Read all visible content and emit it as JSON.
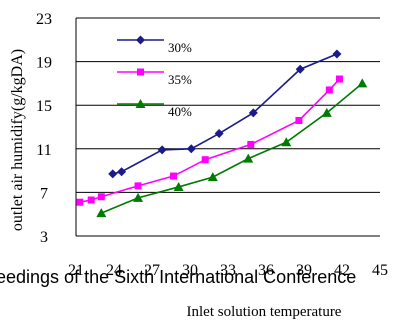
{
  "chart_data": {
    "type": "line",
    "title": "",
    "xlabel": "Inlet solution temperature",
    "ylabel": "outlet air humidify(g/kgDA)",
    "xlim": [
      21,
      45
    ],
    "ylim": [
      3,
      23
    ],
    "x_ticks": [
      "21",
      "24",
      "27",
      "30",
      "33",
      "36",
      "39",
      "42",
      "45"
    ],
    "y_ticks": [
      "3",
      "7",
      "11",
      "15",
      "19",
      "23"
    ],
    "grid": "horizontal",
    "legend_position": "top-left",
    "overlay_text": "eedings of the Sixth International Conference",
    "series": [
      {
        "name": "30%",
        "color": "#1a1a8c",
        "marker": "diamond",
        "x": [
          23.9,
          24.6,
          27.8,
          30.1,
          32.3,
          35.0,
          38.7,
          41.6
        ],
        "y": [
          8.7,
          8.9,
          10.9,
          11.0,
          12.4,
          14.3,
          18.3,
          19.7
        ]
      },
      {
        "name": "35%",
        "color": "#ff00ff",
        "marker": "square",
        "x": [
          21.3,
          22.2,
          23.0,
          25.9,
          28.7,
          31.2,
          34.8,
          38.6,
          41.0,
          41.8
        ],
        "y": [
          6.1,
          6.3,
          6.6,
          7.6,
          8.5,
          10.0,
          11.4,
          13.6,
          16.4,
          17.4
        ]
      },
      {
        "name": "40%",
        "color": "#007a00",
        "marker": "triangle",
        "x": [
          23.0,
          25.9,
          29.1,
          31.8,
          34.6,
          37.6,
          40.8,
          43.6
        ],
        "y": [
          5.1,
          6.5,
          7.5,
          8.4,
          10.1,
          11.6,
          14.3,
          17.0
        ]
      }
    ]
  }
}
